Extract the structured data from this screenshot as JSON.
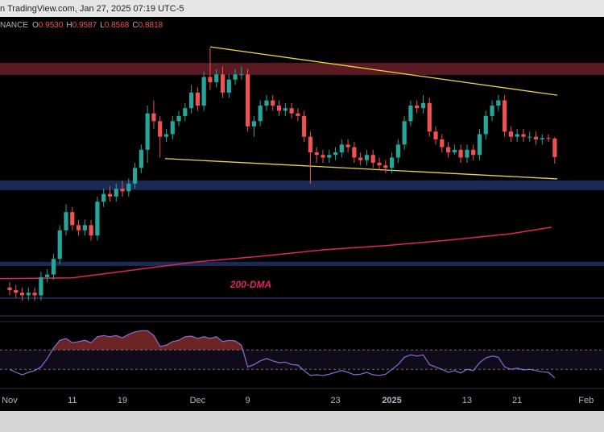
{
  "chart_data": {
    "type": "candlestick",
    "source": "n TradingView.com, Jan 27, 2025 07:19 UTC-5",
    "symbol": "NANCE",
    "ohlc_legend": [
      {
        "name": "O",
        "value": 0.953,
        "label": "0.9530"
      },
      {
        "name": "H",
        "value": 0.9587,
        "label": "0.9587"
      },
      {
        "name": "L",
        "value": 0.8568,
        "label": "0.8568"
      },
      {
        "name": "C",
        "value": 0.8818,
        "label": "0.8818"
      }
    ],
    "up_color": "#26a69a",
    "down_color": "#ef5350",
    "open": [
      0.38,
      0.37,
      0.36,
      0.35,
      0.36,
      0.35,
      0.42,
      0.43,
      0.49,
      0.6,
      0.67,
      0.62,
      0.6,
      0.62,
      0.58,
      0.71,
      0.74,
      0.73,
      0.76,
      0.75,
      0.78,
      0.84,
      0.91,
      1.05,
      1.02,
      0.96,
      0.97,
      1.02,
      1.04,
      1.07,
      1.13,
      1.08,
      1.19,
      1.17,
      1.2,
      1.13,
      1.18,
      1.2,
      1.2,
      1.0,
      1.02,
      1.08,
      1.1,
      1.08,
      1.06,
      1.07,
      1.05,
      1.04,
      0.96,
      0.9,
      0.89,
      0.88,
      0.89,
      0.9,
      0.93,
      0.92,
      0.88,
      0.87,
      0.89,
      0.86,
      0.85,
      0.84,
      0.88,
      0.93,
      1.02,
      1.08,
      1.07,
      1.09,
      0.98,
      0.95,
      0.92,
      0.9,
      0.91,
      0.88,
      0.91,
      0.89,
      0.97,
      1.04,
      1.08,
      1.1,
      0.98,
      0.96,
      0.97,
      0.96,
      0.96,
      0.95,
      0.955,
      0.953
    ],
    "high": [
      0.4,
      0.39,
      0.38,
      0.38,
      0.38,
      0.44,
      0.45,
      0.51,
      0.62,
      0.7,
      0.69,
      0.64,
      0.64,
      0.64,
      0.73,
      0.76,
      0.77,
      0.78,
      0.79,
      0.8,
      0.86,
      0.93,
      1.08,
      1.1,
      1.04,
      0.99,
      1.04,
      1.06,
      1.09,
      1.16,
      1.15,
      1.21,
      1.3,
      1.22,
      1.23,
      1.2,
      1.22,
      1.23,
      1.22,
      1.04,
      1.1,
      1.12,
      1.12,
      1.1,
      1.09,
      1.09,
      1.07,
      1.06,
      0.98,
      0.92,
      0.91,
      0.91,
      0.92,
      0.95,
      0.95,
      0.94,
      0.9,
      0.91,
      0.91,
      0.88,
      0.87,
      0.9,
      0.95,
      1.04,
      1.1,
      1.1,
      1.12,
      1.11,
      1.0,
      0.97,
      0.94,
      0.93,
      0.93,
      0.93,
      0.93,
      0.99,
      1.06,
      1.1,
      1.12,
      1.12,
      1.0,
      0.99,
      0.99,
      0.98,
      0.98,
      0.97,
      0.97,
      0.9587
    ],
    "low": [
      0.35,
      0.34,
      0.33,
      0.33,
      0.33,
      0.33,
      0.4,
      0.41,
      0.47,
      0.58,
      0.6,
      0.58,
      0.58,
      0.56,
      0.56,
      0.69,
      0.71,
      0.71,
      0.73,
      0.73,
      0.76,
      0.82,
      0.86,
      0.99,
      0.88,
      0.94,
      0.95,
      1.0,
      1.02,
      1.05,
      1.06,
      1.06,
      1.14,
      1.15,
      1.11,
      1.11,
      1.16,
      1.18,
      0.98,
      0.96,
      1.0,
      1.06,
      1.06,
      1.04,
      1.04,
      1.03,
      1.02,
      0.94,
      0.78,
      0.86,
      0.86,
      0.86,
      0.87,
      0.88,
      0.9,
      0.86,
      0.85,
      0.85,
      0.84,
      0.83,
      0.82,
      0.82,
      0.86,
      0.91,
      1.0,
      1.05,
      1.05,
      0.96,
      0.93,
      0.9,
      0.88,
      0.89,
      0.86,
      0.86,
      0.87,
      0.87,
      0.95,
      1.02,
      1.06,
      0.96,
      0.94,
      0.94,
      0.94,
      0.94,
      0.93,
      0.93,
      0.94,
      0.8568
    ],
    "close": [
      0.37,
      0.36,
      0.35,
      0.36,
      0.35,
      0.42,
      0.43,
      0.49,
      0.6,
      0.67,
      0.62,
      0.6,
      0.62,
      0.58,
      0.71,
      0.74,
      0.73,
      0.76,
      0.75,
      0.78,
      0.84,
      0.91,
      1.05,
      1.02,
      0.96,
      0.97,
      1.02,
      1.04,
      1.07,
      1.13,
      1.08,
      1.19,
      1.17,
      1.2,
      1.13,
      1.18,
      1.2,
      1.2,
      1.0,
      1.02,
      1.08,
      1.1,
      1.08,
      1.06,
      1.07,
      1.05,
      1.04,
      0.96,
      0.9,
      0.89,
      0.88,
      0.89,
      0.9,
      0.93,
      0.92,
      0.88,
      0.87,
      0.89,
      0.86,
      0.85,
      0.84,
      0.88,
      0.93,
      1.02,
      1.08,
      1.07,
      1.09,
      0.98,
      0.95,
      0.92,
      0.9,
      0.91,
      0.88,
      0.91,
      0.89,
      0.97,
      1.04,
      1.08,
      1.1,
      0.98,
      0.96,
      0.97,
      0.96,
      0.96,
      0.95,
      0.955,
      0.953,
      0.8818
    ],
    "xlim": [
      -1.54,
      94.86
    ],
    "ylim": [
      0.252,
      1.418
    ],
    "xticks": [
      {
        "value": 0,
        "label": "Nov"
      },
      {
        "value": 10,
        "label": "11"
      },
      {
        "value": 18,
        "label": "19"
      },
      {
        "value": 30,
        "label": "Dec"
      },
      {
        "value": 38,
        "label": "9"
      },
      {
        "value": 52,
        "label": "23"
      },
      {
        "value": 61,
        "label": "2025"
      },
      {
        "value": 73,
        "label": "13"
      },
      {
        "value": 81,
        "label": "21"
      },
      {
        "value": 92,
        "label": "Feb"
      }
    ],
    "zones": [
      {
        "low": 1.198,
        "high": 1.244,
        "color": "#5a1a22"
      },
      {
        "low": 0.755,
        "high": 0.792,
        "color": "#1b2a55"
      },
      {
        "low": 0.463,
        "high": 0.479,
        "color": "#1b2a55"
      },
      {
        "low": 0.336,
        "high": 0.342,
        "color": "#1b2a55"
      }
    ],
    "trendlines": [
      {
        "x": [
          32,
          87.4
        ],
        "y": [
          1.306,
          1.12
        ],
        "color": "#e8d44d"
      },
      {
        "x": [
          24.8,
          87.4
        ],
        "y": [
          0.876,
          0.798
        ],
        "color": "#e8d44d"
      }
    ],
    "dma": {
      "label": "200-DMA",
      "color": "#e0245e",
      "x": [
        -1.5,
        10,
        20,
        30,
        40,
        50,
        60,
        70,
        80,
        86.5
      ],
      "y": [
        0.414,
        0.417,
        0.448,
        0.479,
        0.5,
        0.525,
        0.541,
        0.562,
        0.587,
        0.612
      ]
    },
    "rsi": {
      "color": "#8e6bd6",
      "ylim": [
        0,
        100
      ],
      "bands": [
        61,
        29
      ],
      "values": [
        29,
        24,
        20,
        24,
        27,
        33,
        47,
        64,
        77,
        80,
        73,
        75,
        77,
        73,
        83,
        85,
        83,
        85,
        81,
        87,
        91,
        93,
        93,
        85,
        67,
        69,
        75,
        77,
        83,
        84,
        80,
        83,
        80,
        83,
        75,
        77,
        76,
        69,
        33,
        37,
        43,
        47,
        43,
        40,
        41,
        37,
        36,
        27,
        19,
        20,
        19,
        21,
        24,
        27,
        24,
        20,
        21,
        24,
        20,
        19,
        21,
        29,
        37,
        49,
        53,
        51,
        53,
        37,
        33,
        29,
        24,
        27,
        23,
        29,
        27,
        40,
        48,
        51,
        49,
        33,
        29,
        31,
        28,
        29,
        27,
        25,
        24,
        15
      ]
    }
  }
}
